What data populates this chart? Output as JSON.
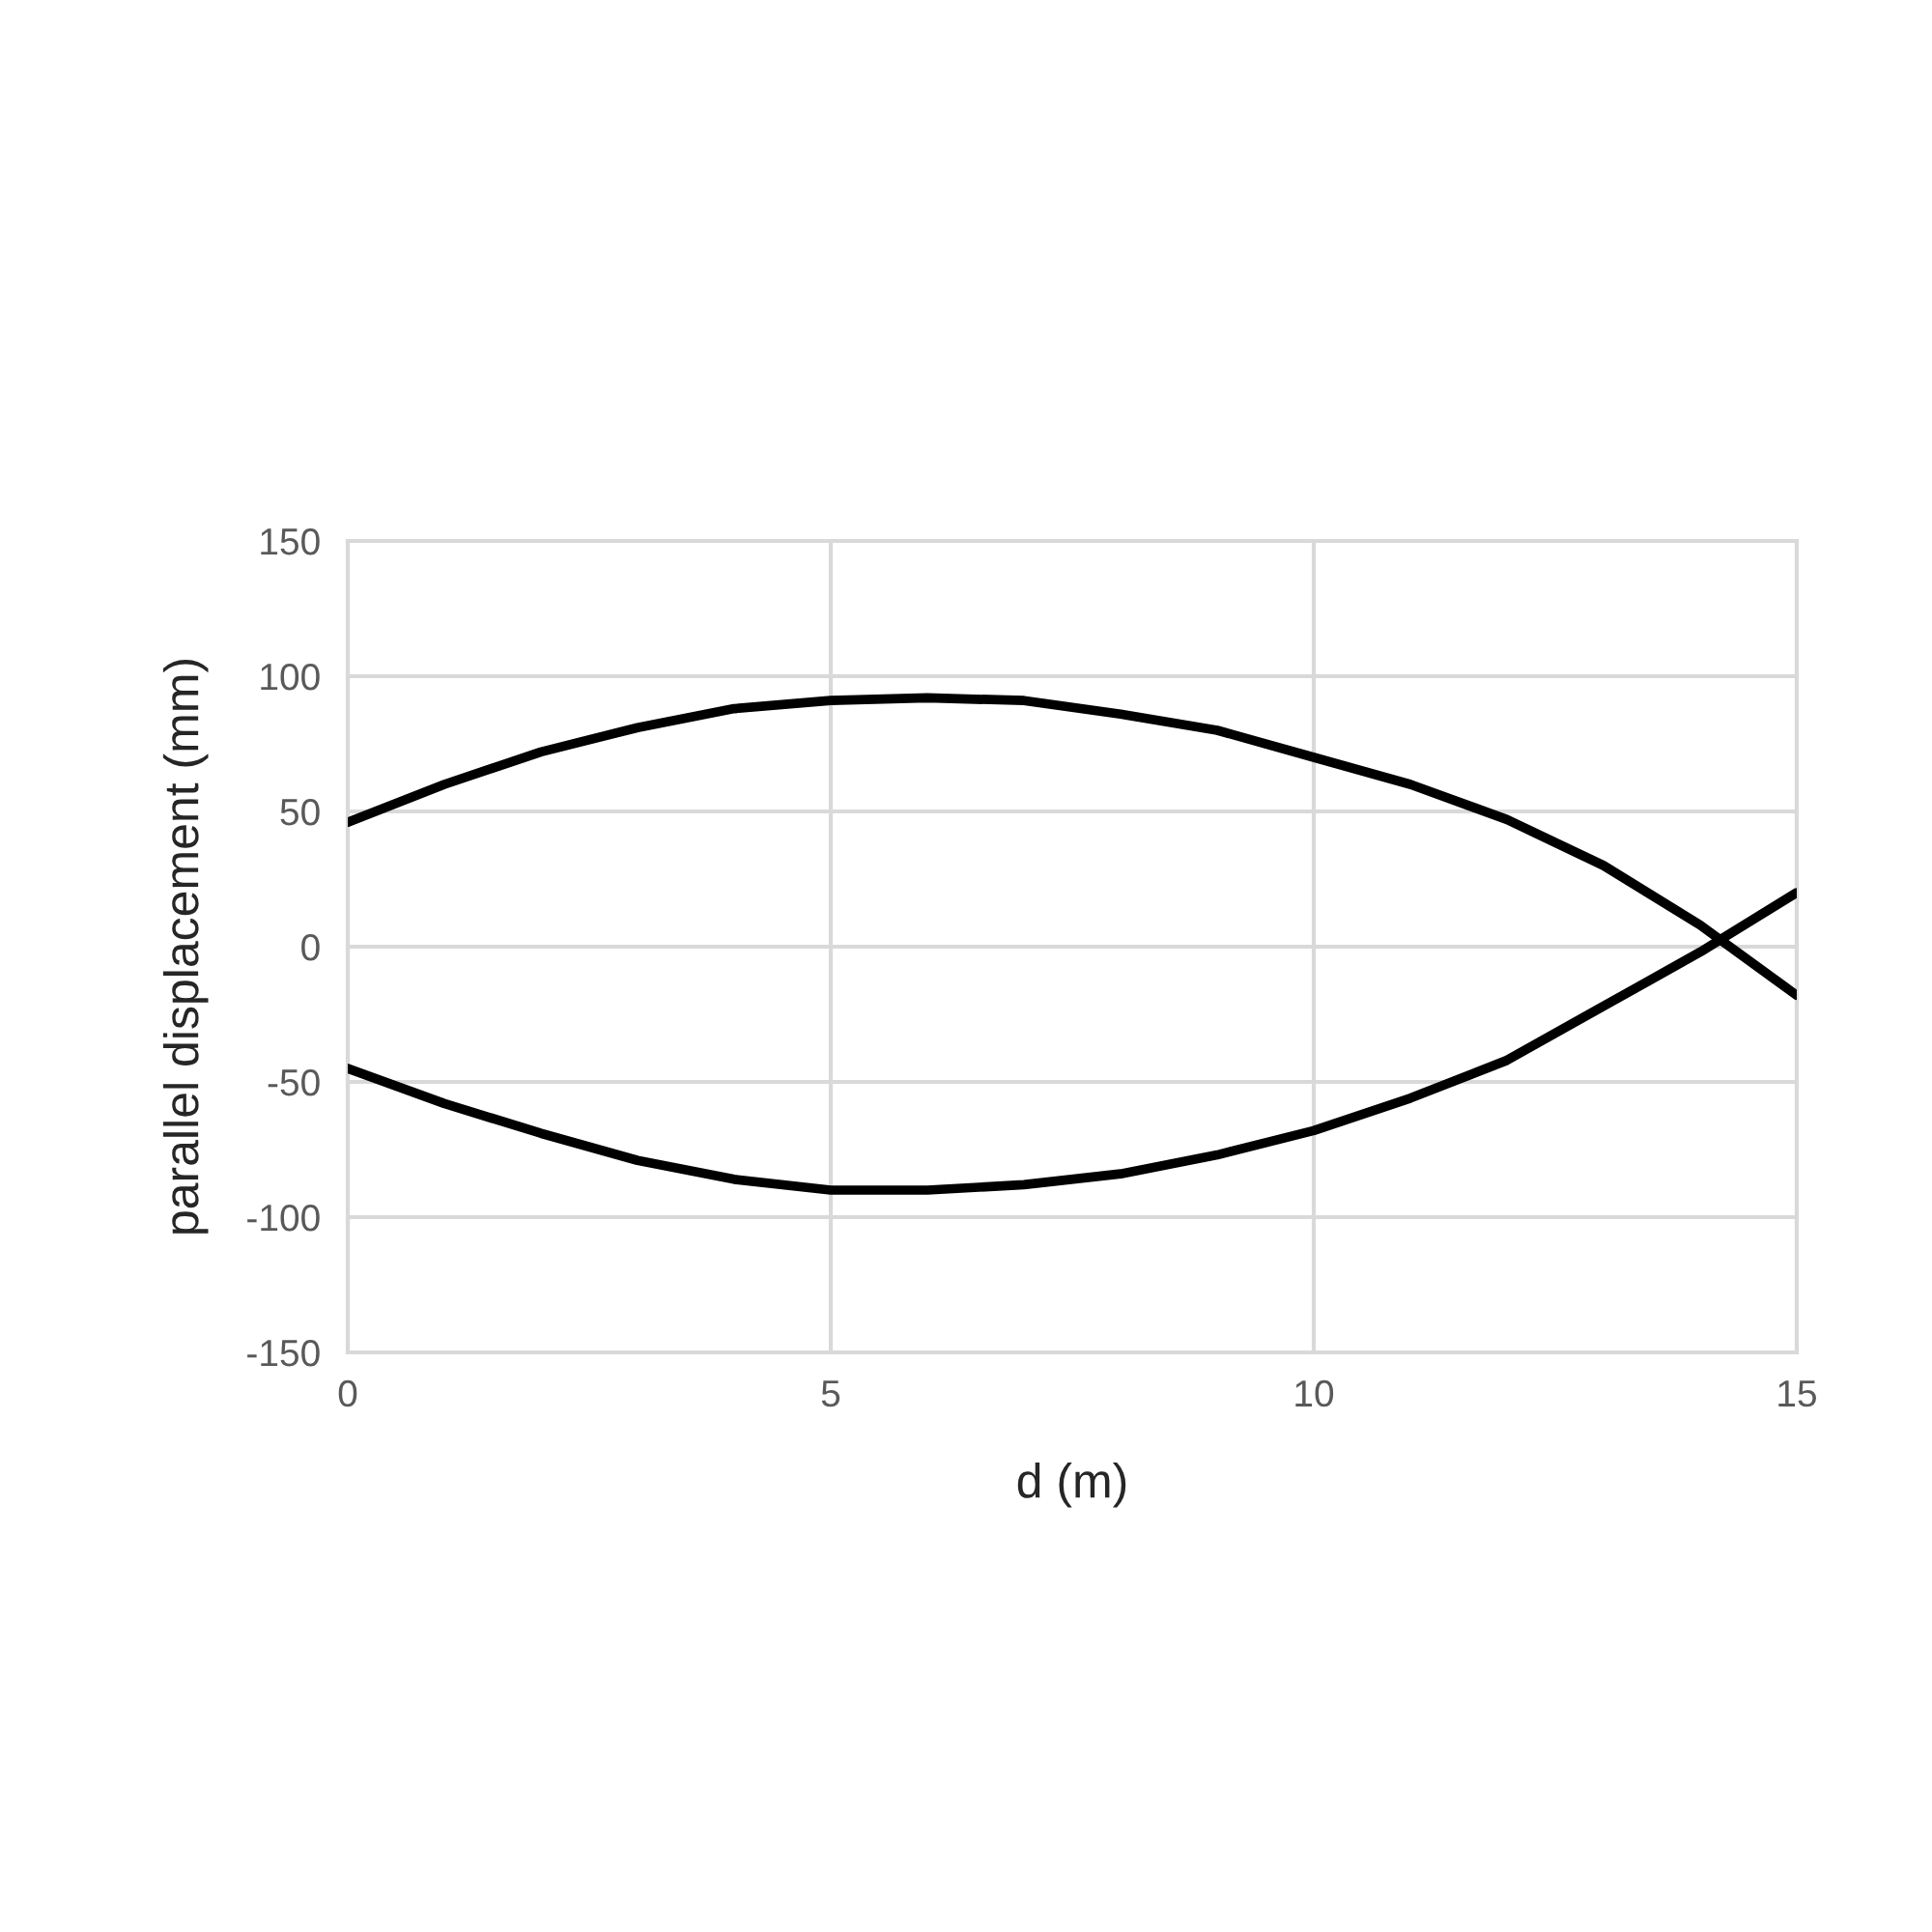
{
  "chart_data": {
    "type": "line",
    "xlabel": "d (m)",
    "ylabel": "parallel displacement (mm)",
    "x": [
      0,
      1,
      2,
      3,
      4,
      5,
      6,
      7,
      8,
      9,
      10,
      11,
      12,
      13,
      14,
      15
    ],
    "series": [
      {
        "color": "#000000",
        "values": [
          46,
          60,
          72,
          81,
          88,
          91,
          92,
          91,
          86,
          80,
          70,
          60,
          47,
          30,
          8,
          -18
        ]
      },
      {
        "color": "#000000",
        "values": [
          -45,
          -58,
          -69,
          -79,
          -86,
          -90,
          -90,
          -88,
          -84,
          -77,
          -68,
          -56,
          -42,
          -22,
          -2,
          20
        ]
      }
    ],
    "xlim": [
      0,
      15
    ],
    "xticks": [
      0,
      5,
      10,
      15
    ],
    "ylim": [
      -150,
      150
    ],
    "yticks": [
      -150,
      -100,
      -50,
      0,
      50,
      100,
      150
    ],
    "grid": true,
    "marker": "none",
    "line_style": "solid"
  }
}
